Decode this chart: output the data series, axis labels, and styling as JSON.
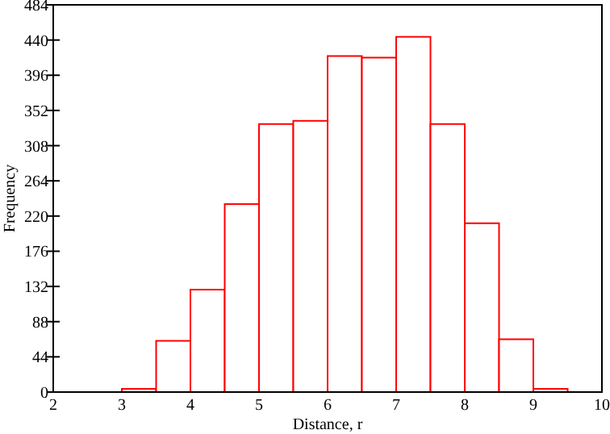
{
  "chart_data": {
    "type": "histogram",
    "xlabel": "Distance, r",
    "ylabel": "Frequency",
    "color": "#ff0000",
    "bins": [
      2,
      2.5,
      3,
      3.5,
      4,
      4.5,
      5,
      5.5,
      6,
      6.5,
      7,
      7.5,
      8,
      8.5,
      9,
      9.5,
      10
    ],
    "values": [
      0,
      0,
      4,
      64,
      128,
      235,
      335,
      339,
      420,
      418,
      444,
      335,
      211,
      66,
      4,
      0
    ],
    "xlim": [
      2,
      10
    ],
    "xticks": [
      2,
      3,
      4,
      5,
      6,
      7,
      8,
      9,
      10
    ],
    "ylim": [
      0,
      484
    ],
    "yticks": [
      0,
      44,
      88,
      132,
      176,
      220,
      264,
      308,
      352,
      396,
      440,
      484
    ],
    "grid": false
  }
}
